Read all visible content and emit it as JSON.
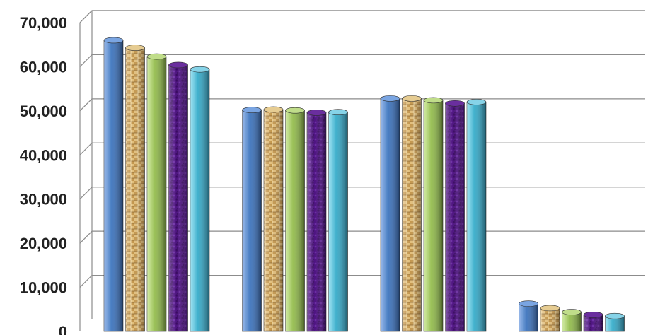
{
  "chart_data": {
    "type": "bar",
    "title": "",
    "xlabel": "",
    "ylabel": "",
    "ylim": [
      0,
      70000
    ],
    "yticks": [
      "0",
      "10,000",
      "20,000",
      "30,000",
      "40,000",
      "50,000",
      "60,000",
      "70,000"
    ],
    "grid": true,
    "legend": "none",
    "categories": [
      "",
      "",
      "",
      ""
    ],
    "series": [
      {
        "values": [
          66000,
          50200,
          52800,
          6300
        ],
        "color": "#4a7fc4",
        "fill": "solid"
      },
      {
        "values": [
          64300,
          50300,
          52800,
          5300
        ],
        "color": "#d9b26a",
        "fill": "woven"
      },
      {
        "values": [
          62300,
          50100,
          52400,
          4400
        ],
        "color": "#9dc35a",
        "fill": "solid"
      },
      {
        "values": [
          60400,
          49600,
          51700,
          3800
        ],
        "color": "#4a1078",
        "fill": "textured"
      },
      {
        "values": [
          59400,
          49700,
          52000,
          3500
        ],
        "color": "#43b3cf",
        "fill": "solid"
      }
    ]
  }
}
